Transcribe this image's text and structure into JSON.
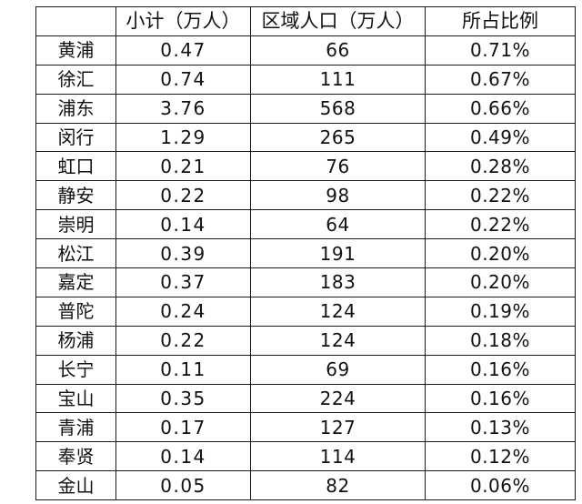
{
  "table": {
    "headers": [
      "",
      "小计（万人）",
      "区域人口（万人）",
      "所占比例"
    ],
    "rows": [
      {
        "district": "黄浦",
        "subtotal": "0.47",
        "population": "66",
        "ratio": "0.71%"
      },
      {
        "district": "徐汇",
        "subtotal": "0.74",
        "population": "111",
        "ratio": "0.67%"
      },
      {
        "district": "浦东",
        "subtotal": "3.76",
        "population": "568",
        "ratio": "0.66%"
      },
      {
        "district": "闵行",
        "subtotal": "1.29",
        "population": "265",
        "ratio": "0.49%"
      },
      {
        "district": "虹口",
        "subtotal": "0.21",
        "population": "76",
        "ratio": "0.28%"
      },
      {
        "district": "静安",
        "subtotal": "0.22",
        "population": "98",
        "ratio": "0.22%"
      },
      {
        "district": "崇明",
        "subtotal": "0.14",
        "population": "64",
        "ratio": "0.22%"
      },
      {
        "district": "松江",
        "subtotal": "0.39",
        "population": "191",
        "ratio": "0.20%"
      },
      {
        "district": "嘉定",
        "subtotal": "0.37",
        "population": "183",
        "ratio": "0.20%"
      },
      {
        "district": "普陀",
        "subtotal": "0.24",
        "population": "124",
        "ratio": "0.19%"
      },
      {
        "district": "杨浦",
        "subtotal": "0.22",
        "population": "124",
        "ratio": "0.18%"
      },
      {
        "district": "长宁",
        "subtotal": "0.11",
        "population": "69",
        "ratio": "0.16%"
      },
      {
        "district": "宝山",
        "subtotal": "0.35",
        "population": "224",
        "ratio": "0.16%"
      },
      {
        "district": "青浦",
        "subtotal": "0.17",
        "population": "127",
        "ratio": "0.13%"
      },
      {
        "district": "奉贤",
        "subtotal": "0.14",
        "population": "114",
        "ratio": "0.12%"
      },
      {
        "district": "金山",
        "subtotal": "0.05",
        "population": "82",
        "ratio": "0.06%"
      }
    ]
  },
  "colors": {
    "border": "#1a1a1a",
    "text": "#111111",
    "background": "#ffffff"
  }
}
